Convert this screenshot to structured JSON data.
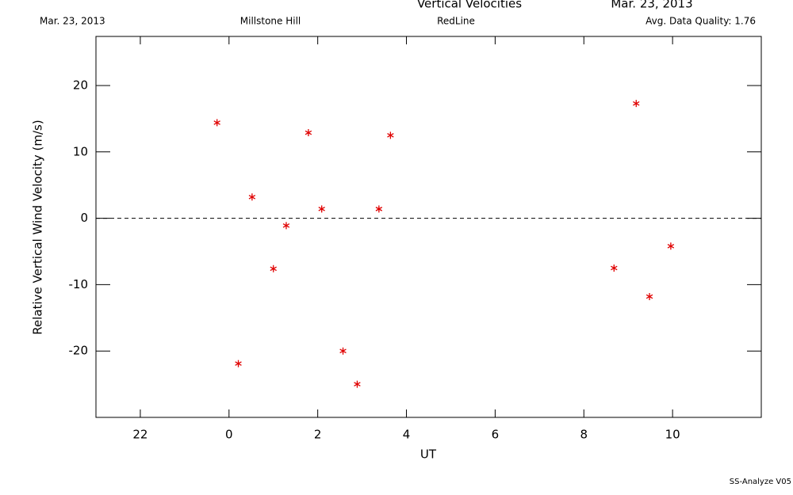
{
  "chart_data": {
    "type": "scatter",
    "title": "Vertical Velocities",
    "header_date": "Mar. 23, 2013",
    "date": "Mar. 23, 2013",
    "site": "Millstone Hill",
    "emission": "RedLine",
    "quality": "Avg. Data Quality: 1.76",
    "footer": "SS-Analyze V05",
    "x_label": "UT",
    "y_label": "Relative Vertical Wind Velocity (m/s)",
    "xlim": [
      -3,
      12
    ],
    "ylim": [
      -30,
      27.4
    ],
    "xticks": [
      {
        "value": -2,
        "label": "22"
      },
      0,
      2,
      4,
      6,
      8,
      10
    ],
    "yticks": [
      -20,
      -10,
      0,
      10,
      20
    ],
    "reference_line": 0,
    "series": [
      {
        "color": "#e00000",
        "x": [
          -0.27,
          0.21,
          0.52,
          1.0,
          1.29,
          1.79,
          2.09,
          2.57,
          2.89,
          3.38,
          3.64,
          8.68,
          9.18,
          9.48,
          9.96
        ],
        "values": [
          14.4,
          -21.9,
          3.2,
          -7.6,
          -1.1,
          12.9,
          1.4,
          -20,
          -25,
          1.4,
          12.5,
          -7.5,
          17.3,
          -11.8,
          -4.2
        ]
      }
    ]
  }
}
